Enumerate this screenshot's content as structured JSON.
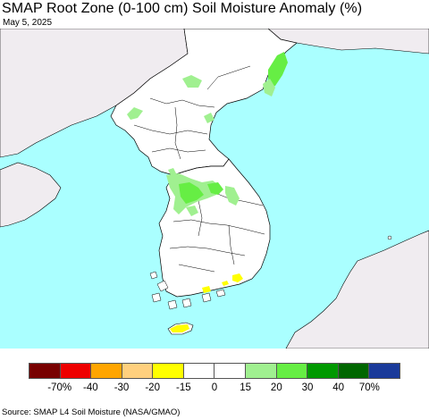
{
  "header": {
    "title": "SMAP Root Zone (0-100 cm) Soil Moisture Anomaly (%)",
    "date": "May 5, 2025"
  },
  "map": {
    "ocean_color": "#aaffff",
    "foreign_land_color": "#f0ecf0",
    "korea_land_color": "#ffffff",
    "boundary_color": "#000000",
    "anomaly_colors": {
      "moist_light": "#a0f090",
      "moist_medium": "#66ee44",
      "dry_light": "#ffff00"
    }
  },
  "legend": {
    "colors": [
      "#780000",
      "#ee0000",
      "#ffa500",
      "#ffd07e",
      "#ffff00",
      "#ffffff",
      "#ffffff",
      "#a0f090",
      "#66ee44",
      "#009900",
      "#006600",
      "#1a3a9a"
    ],
    "labels": [
      "-70%",
      "-40",
      "-30",
      "-20",
      "-15",
      "0",
      "15",
      "20",
      "30",
      "40",
      "70%"
    ]
  },
  "footer": {
    "source": "Source: SMAP L4 Soil Moisture (NASA/GMAO)"
  }
}
